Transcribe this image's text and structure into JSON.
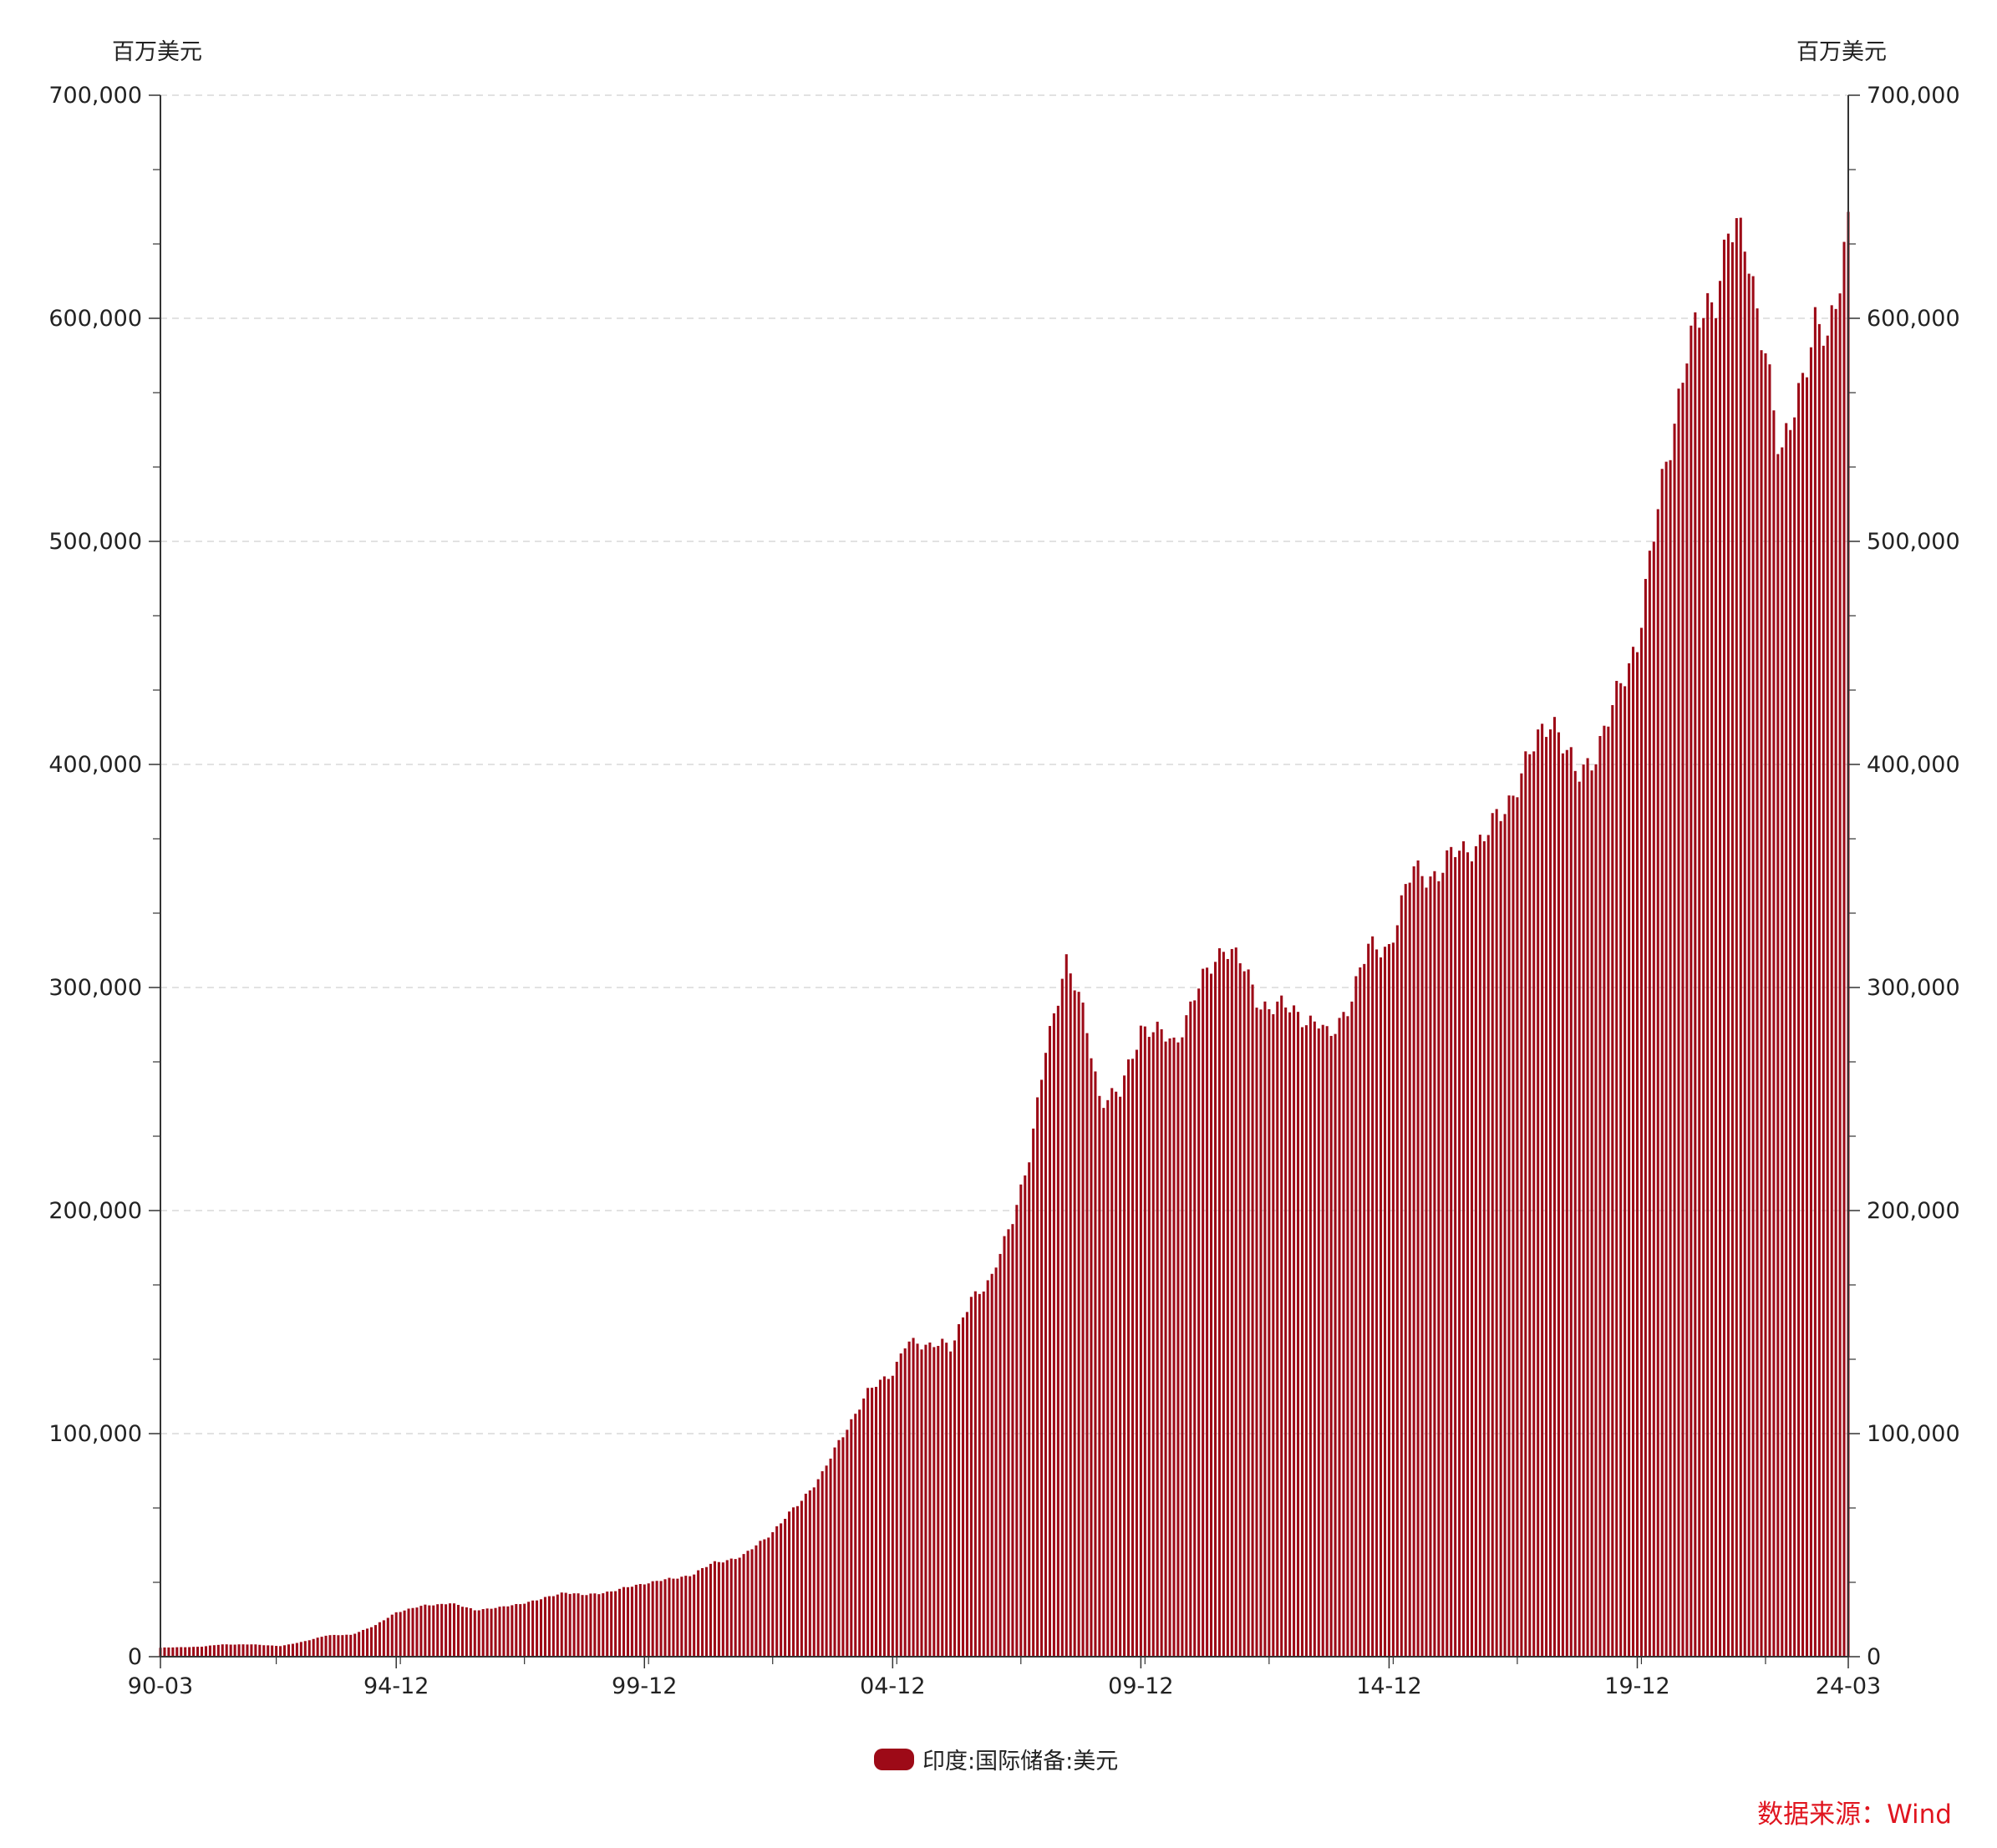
{
  "chart_data": {
    "type": "bar",
    "unit_left": "百万美元",
    "unit_right": "百万美元",
    "y_axis_ticks": [
      "0",
      "100,000",
      "200,000",
      "300,000",
      "400,000",
      "500,000",
      "600,000",
      "700,000"
    ],
    "ylim": [
      0,
      700000
    ],
    "x_tick_labels": [
      "90-03",
      "94-12",
      "99-12",
      "04-12",
      "09-12",
      "14-12",
      "19-12",
      "24-03"
    ],
    "grid": "horizontal dashed",
    "legend_position": "bottom",
    "series": [
      {
        "name": "印度:国际储备:美元",
        "color": "#9d0a17",
        "anchors": [
          {
            "t": 1990.17,
            "v": 4000
          },
          {
            "t": 1991.0,
            "v": 4500
          },
          {
            "t": 1991.4,
            "v": 5500
          },
          {
            "t": 1992.0,
            "v": 5500
          },
          {
            "t": 1992.6,
            "v": 4800
          },
          {
            "t": 1993.0,
            "v": 6500
          },
          {
            "t": 1993.5,
            "v": 9500
          },
          {
            "t": 1994.0,
            "v": 9800
          },
          {
            "t": 1994.5,
            "v": 14000
          },
          {
            "t": 1994.92,
            "v": 20000
          },
          {
            "t": 1995.5,
            "v": 23000
          },
          {
            "t": 1996.0,
            "v": 24000
          },
          {
            "t": 1996.5,
            "v": 21000
          },
          {
            "t": 1997.0,
            "v": 22000
          },
          {
            "t": 1997.8,
            "v": 25500
          },
          {
            "t": 1998.3,
            "v": 29000
          },
          {
            "t": 1998.7,
            "v": 27500
          },
          {
            "t": 1999.3,
            "v": 29500
          },
          {
            "t": 1999.92,
            "v": 33000
          },
          {
            "t": 2000.5,
            "v": 35000
          },
          {
            "t": 2000.9,
            "v": 37000
          },
          {
            "t": 2001.3,
            "v": 42000
          },
          {
            "t": 2001.9,
            "v": 45000
          },
          {
            "t": 2002.5,
            "v": 56000
          },
          {
            "t": 2003.0,
            "v": 68000
          },
          {
            "t": 2003.5,
            "v": 82000
          },
          {
            "t": 2004.0,
            "v": 103000
          },
          {
            "t": 2004.4,
            "v": 118000
          },
          {
            "t": 2004.92,
            "v": 128000
          },
          {
            "t": 2005.2,
            "v": 141000
          },
          {
            "t": 2005.5,
            "v": 139000
          },
          {
            "t": 2005.9,
            "v": 142000
          },
          {
            "t": 2006.1,
            "v": 137000
          },
          {
            "t": 2006.5,
            "v": 162000
          },
          {
            "t": 2006.9,
            "v": 168000
          },
          {
            "t": 2007.3,
            "v": 195000
          },
          {
            "t": 2007.7,
            "v": 226000
          },
          {
            "t": 2008.0,
            "v": 272000
          },
          {
            "t": 2008.4,
            "v": 313000
          },
          {
            "t": 2008.8,
            "v": 285000
          },
          {
            "t": 2009.1,
            "v": 250000
          },
          {
            "t": 2009.5,
            "v": 252000
          },
          {
            "t": 2009.92,
            "v": 283000
          },
          {
            "t": 2010.3,
            "v": 279000
          },
          {
            "t": 2010.6,
            "v": 275000
          },
          {
            "t": 2011.0,
            "v": 296000
          },
          {
            "t": 2011.6,
            "v": 320000
          },
          {
            "t": 2011.9,
            "v": 312000
          },
          {
            "t": 2012.3,
            "v": 293000
          },
          {
            "t": 2012.8,
            "v": 291000
          },
          {
            "t": 2013.5,
            "v": 284000
          },
          {
            "t": 2013.7,
            "v": 276000
          },
          {
            "t": 2014.1,
            "v": 293000
          },
          {
            "t": 2014.5,
            "v": 317000
          },
          {
            "t": 2014.92,
            "v": 319000
          },
          {
            "t": 2015.4,
            "v": 353000
          },
          {
            "t": 2015.9,
            "v": 350000
          },
          {
            "t": 2016.3,
            "v": 362000
          },
          {
            "t": 2016.8,
            "v": 365000
          },
          {
            "t": 2017.3,
            "v": 383000
          },
          {
            "t": 2017.9,
            "v": 410000
          },
          {
            "t": 2018.2,
            "v": 423000
          },
          {
            "t": 2018.7,
            "v": 393000
          },
          {
            "t": 2019.1,
            "v": 407000
          },
          {
            "t": 2019.5,
            "v": 429000
          },
          {
            "t": 2019.92,
            "v": 457000
          },
          {
            "t": 2020.5,
            "v": 535000
          },
          {
            "t": 2020.9,
            "v": 585000
          },
          {
            "t": 2021.5,
            "v": 612000
          },
          {
            "t": 2021.75,
            "v": 640000
          },
          {
            "t": 2022.1,
            "v": 632000
          },
          {
            "t": 2022.5,
            "v": 588000
          },
          {
            "t": 2022.8,
            "v": 532000
          },
          {
            "t": 2023.1,
            "v": 565000
          },
          {
            "t": 2023.5,
            "v": 595000
          },
          {
            "t": 2023.75,
            "v": 588000
          },
          {
            "t": 2024.0,
            "v": 622000
          },
          {
            "t": 2024.17,
            "v": 646000
          }
        ]
      }
    ]
  },
  "source": "数据来源：Wind"
}
